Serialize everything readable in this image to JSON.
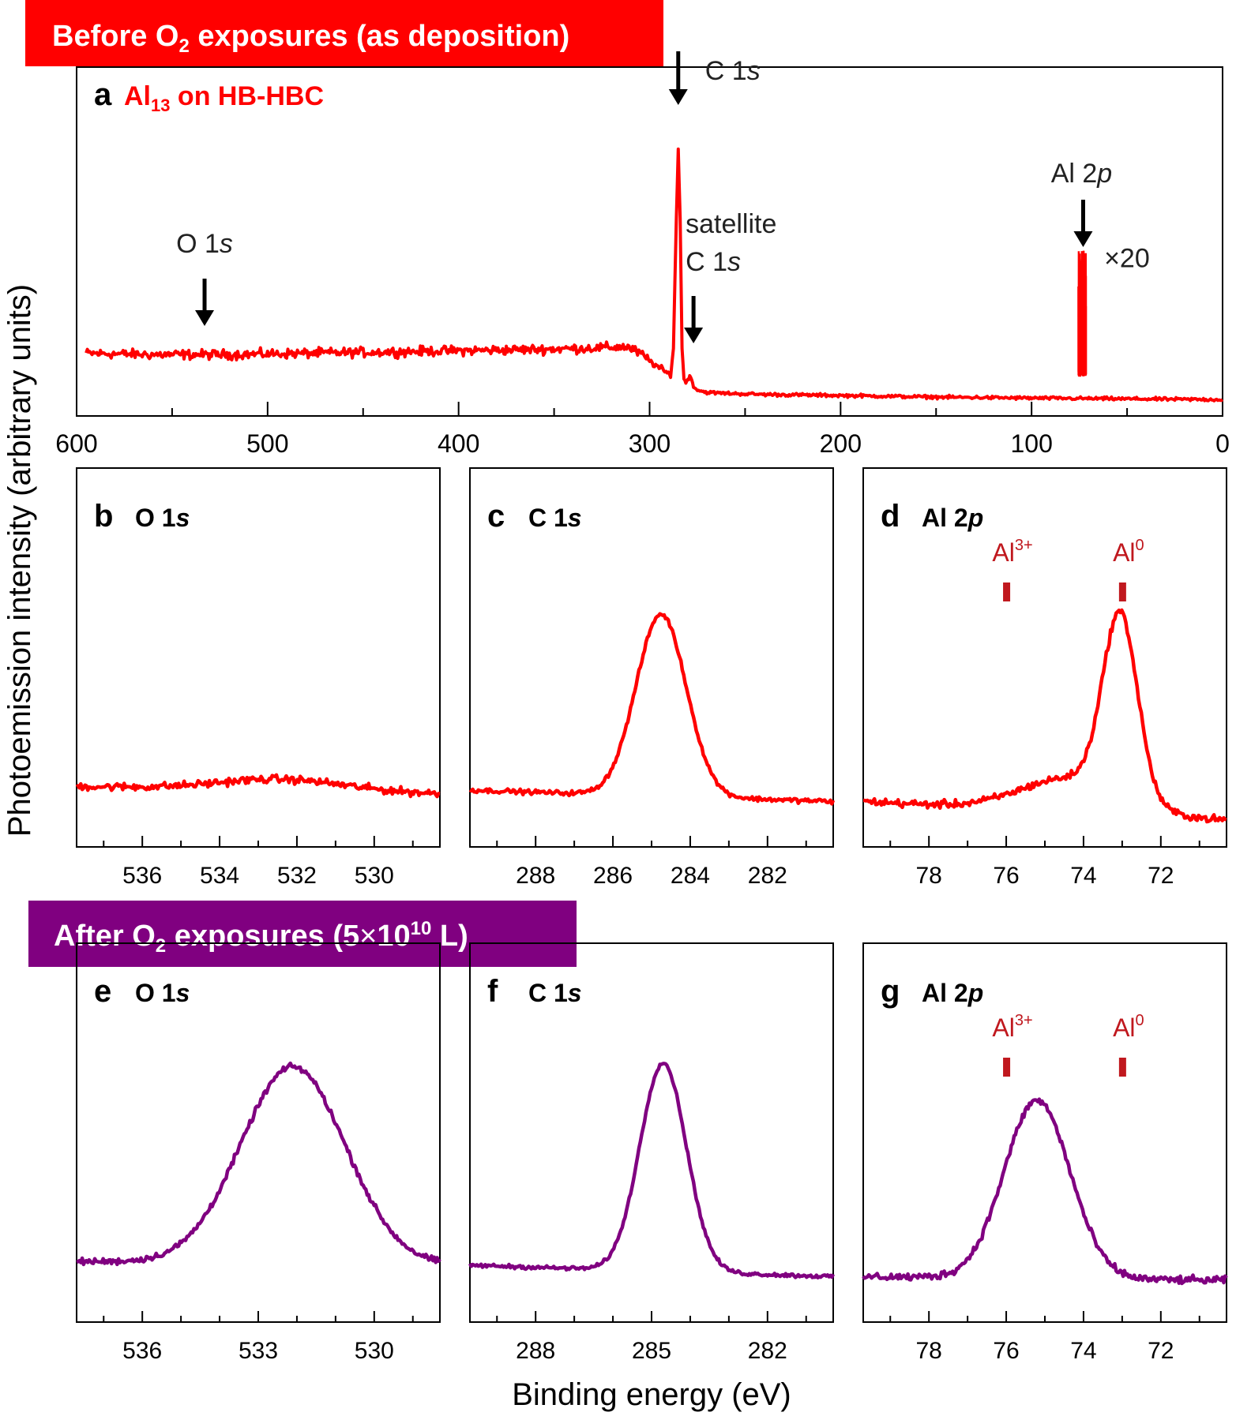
{
  "banners": {
    "before": {
      "text": "Before O",
      "sub": "2",
      "rest": " exposures (as deposition)",
      "color": "#ff0000"
    },
    "after": {
      "text": "After O",
      "sub": "2",
      "rest1": " exposures (5",
      "times": "×",
      "base": "10",
      "sup": "10",
      "rest2": " L)",
      "color": "#800080"
    }
  },
  "axis_labels": {
    "y": "Photoemission intensity (arbitrary units)",
    "x": "Binding energy (eV)"
  },
  "colors": {
    "before": "#ff0000",
    "after": "#800080",
    "marker": "#c0181e",
    "arrow": "#000000"
  },
  "chart_data": [
    {
      "id": "a",
      "type": "line",
      "color": "#ff0000",
      "panel_letter": "a",
      "label": {
        "pre": "Al",
        "sub": "13",
        "post": " on HB-HBC"
      },
      "xlim": [
        600,
        0
      ],
      "x_reversed": true,
      "ylim": [
        0,
        100
      ],
      "xticks": [
        600,
        500,
        400,
        300,
        200,
        100,
        0
      ],
      "xtick_labels": [
        "600",
        "500",
        "400",
        "300",
        "200",
        "100",
        "0"
      ],
      "minor_ticks": [
        550,
        450,
        350,
        250,
        150,
        50
      ],
      "series": [
        {
          "x": [
            595,
            560,
            520,
            480,
            440,
            400,
            360,
            330,
            312,
            305,
            298,
            292,
            289,
            287.5,
            286,
            285,
            284,
            283,
            282,
            281,
            280,
            279,
            278,
            277,
            276,
            275,
            273,
            270,
            265,
            255,
            240,
            200,
            150,
            100,
            50,
            0
          ],
          "y": [
            18,
            17.5,
            17.5,
            18,
            18.5,
            19,
            19.5,
            20,
            20.5,
            18,
            14,
            11,
            9.5,
            20,
            70,
            96,
            70,
            20,
            8,
            7,
            8,
            9,
            8,
            5.5,
            4.5,
            4,
            3.5,
            3,
            2.8,
            2.5,
            2.2,
            1.8,
            1.2,
            0.8,
            0.5,
            0.2
          ]
        }
      ],
      "inset": {
        "label": "×20",
        "x_range": [
          78,
          70
        ],
        "amplitude": 45,
        "base": 13
      },
      "annotations": [
        {
          "text": "C 1",
          "italic": "s",
          "x": 285,
          "kind": "peak"
        },
        {
          "text": "satellite",
          "line2": "C 1",
          "italic": "s",
          "x": 277,
          "kind": "satellite"
        },
        {
          "text": "O 1",
          "italic": "s",
          "x": 533,
          "kind": "o1s"
        },
        {
          "text": "Al 2",
          "italic": "p",
          "x": 73,
          "kind": "al2p"
        }
      ]
    },
    {
      "id": "b",
      "type": "line",
      "color": "#ff0000",
      "panel_letter": "b",
      "title": "O 1",
      "title_italic": "s",
      "xlim": [
        537.7,
        528.3
      ],
      "ylim": [
        0,
        100
      ],
      "xticks": [
        536,
        534,
        532,
        530
      ],
      "xtick_labels": [
        "536",
        "534",
        "532",
        "530"
      ],
      "minor_ticks": [
        537,
        535,
        533,
        531,
        529
      ],
      "series": [
        {
          "peak_center": 532.4,
          "peak_width": 1.6,
          "peak_height": 3,
          "baseline_start": 16,
          "baseline_end": 14,
          "noise": 1.0
        }
      ]
    },
    {
      "id": "c",
      "type": "line",
      "color": "#ff0000",
      "panel_letter": "c",
      "title": "C 1",
      "title_italic": "s",
      "xlim": [
        289.7,
        280.3
      ],
      "ylim": [
        0,
        100
      ],
      "xticks": [
        288,
        286,
        284,
        282
      ],
      "xtick_labels": [
        "288",
        "286",
        "284",
        "282"
      ],
      "minor_ticks": [
        289,
        287,
        285,
        283,
        281
      ],
      "series": [
        {
          "peak_center": 284.75,
          "peak_width": 0.65,
          "peak_height": 48,
          "baseline_start": 15,
          "baseline_end": 12,
          "noise": 0.6
        }
      ]
    },
    {
      "id": "d",
      "type": "line",
      "color": "#ff0000",
      "panel_letter": "d",
      "title": "Al 2",
      "title_italic": "p",
      "xlim": [
        79.7,
        70.3
      ],
      "ylim": [
        0,
        100
      ],
      "xticks": [
        78,
        76,
        74,
        72
      ],
      "xtick_labels": [
        "78",
        "76",
        "74",
        "72"
      ],
      "minor_ticks": [
        79,
        77,
        75,
        73,
        71
      ],
      "markers": [
        {
          "label": "Al",
          "sup": "3+",
          "x": 76
        },
        {
          "label": "Al",
          "sup": "0",
          "x": 73
        }
      ],
      "series": [
        {
          "peak_center": 73.05,
          "peak_width": 0.45,
          "peak_height": 48,
          "shoulder_center": 74.3,
          "shoulder_width": 1.3,
          "shoulder_height": 9,
          "baseline_start": 12,
          "baseline_end": 7,
          "noise": 1.0
        }
      ]
    },
    {
      "id": "e",
      "type": "line",
      "color": "#800080",
      "panel_letter": "e",
      "title": "O 1",
      "title_italic": "s",
      "xlim": [
        537.7,
        528.3
      ],
      "ylim": [
        0,
        100
      ],
      "xticks": [
        536,
        533,
        530
      ],
      "xtick_labels": [
        "536",
        "533",
        "530"
      ],
      "minor_ticks": [
        537,
        535,
        534,
        532,
        531,
        529
      ],
      "series": [
        {
          "peak_center": 532.1,
          "peak_width": 1.35,
          "peak_height": 52,
          "baseline_start": 16,
          "baseline_end": 15,
          "noise": 0.8
        }
      ]
    },
    {
      "id": "f",
      "type": "line",
      "color": "#800080",
      "panel_letter": "f",
      "title": "C 1",
      "title_italic": "s",
      "xlim": [
        289.7,
        280.3
      ],
      "ylim": [
        0,
        100
      ],
      "xticks": [
        288,
        285,
        282
      ],
      "xtick_labels": [
        "288",
        "285",
        "282"
      ],
      "minor_ticks": [
        289,
        287,
        286,
        284,
        283,
        281
      ],
      "series": [
        {
          "peak_center": 284.7,
          "peak_width": 0.6,
          "peak_height": 55,
          "baseline_start": 15,
          "baseline_end": 12,
          "noise": 0.5
        }
      ]
    },
    {
      "id": "g",
      "type": "line",
      "color": "#800080",
      "panel_letter": "g",
      "title": "Al 2",
      "title_italic": "p",
      "xlim": [
        79.7,
        70.3
      ],
      "ylim": [
        0,
        100
      ],
      "xticks": [
        78,
        76,
        74,
        72
      ],
      "xtick_labels": [
        "78",
        "76",
        "74",
        "72"
      ],
      "minor_ticks": [
        79,
        77,
        75,
        73,
        71
      ],
      "markers": [
        {
          "label": "Al",
          "sup": "3+",
          "x": 76
        },
        {
          "label": "Al",
          "sup": "0",
          "x": 73
        }
      ],
      "series": [
        {
          "peak_center": 75.2,
          "peak_width": 0.85,
          "peak_height": 47,
          "baseline_start": 12,
          "baseline_end": 11,
          "noise": 1.0
        }
      ]
    }
  ]
}
